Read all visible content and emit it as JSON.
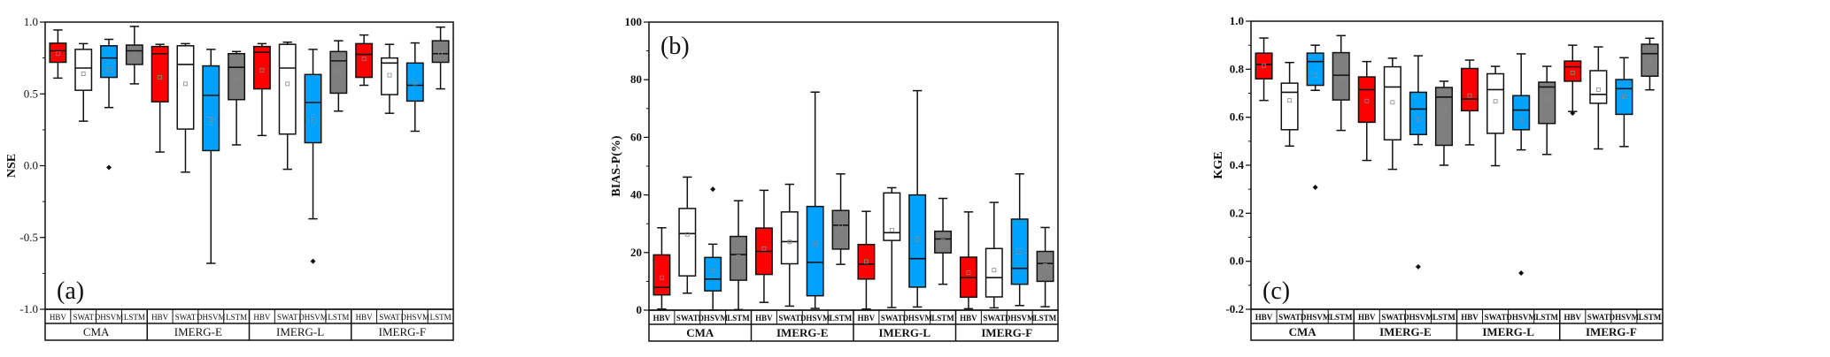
{
  "chart_data": [
    {
      "type": "box",
      "panel_label": "(a)",
      "ylabel": "NSE",
      "ylim": [
        -1.0,
        1.0
      ],
      "yticks": [
        -1.0,
        -0.5,
        0.0,
        0.5,
        1.0
      ],
      "ytick_labels": [
        "-1.0",
        "-0.5",
        "0.0",
        "0.5",
        "1.0"
      ],
      "minor_step": 0.25,
      "groups": [
        "CMA",
        "IMERG-E",
        "IMERG-L",
        "IMERG-F"
      ],
      "models": [
        "HBV",
        "SWAT",
        "DHSVM",
        "LSTM"
      ],
      "stat_order": [
        "whisker_low",
        "q1",
        "median",
        "q3",
        "whisker_high",
        "mean",
        "outliers"
      ],
      "boxes": {
        "CMA": {
          "HBV": [
            0.61,
            0.72,
            0.8,
            0.853,
            0.945,
            0.78,
            []
          ],
          "SWAT": [
            0.31,
            0.525,
            0.68,
            0.81,
            0.85,
            0.64,
            []
          ],
          "DHSVM": [
            0.405,
            0.615,
            0.75,
            0.835,
            0.88,
            0.67,
            [
              -0.012
            ]
          ],
          "LSTM": [
            0.57,
            0.705,
            0.8,
            0.84,
            0.97,
            0.78,
            []
          ]
        },
        "IMERG-E": {
          "HBV": [
            0.095,
            0.445,
            0.78,
            0.83,
            0.845,
            0.615,
            []
          ],
          "SWAT": [
            -0.045,
            0.255,
            0.705,
            0.835,
            0.85,
            0.57,
            []
          ],
          "DHSVM": [
            -0.68,
            0.105,
            0.49,
            0.695,
            0.81,
            0.32,
            []
          ],
          "LSTM": [
            0.145,
            0.46,
            0.685,
            0.78,
            0.795,
            0.6,
            []
          ]
        },
        "IMERG-L": {
          "HBV": [
            0.21,
            0.535,
            0.79,
            0.83,
            0.85,
            0.665,
            []
          ],
          "SWAT": [
            -0.025,
            0.22,
            0.68,
            0.845,
            0.86,
            0.57,
            []
          ],
          "DHSVM": [
            -0.37,
            0.16,
            0.44,
            0.635,
            0.81,
            0.315,
            [
              -0.665
            ]
          ],
          "LSTM": [
            0.38,
            0.505,
            0.73,
            0.795,
            0.87,
            0.66,
            []
          ]
        },
        "IMERG-F": {
          "HBV": [
            0.56,
            0.615,
            0.775,
            0.85,
            0.91,
            0.745,
            []
          ],
          "SWAT": [
            0.365,
            0.495,
            0.715,
            0.75,
            0.845,
            0.63,
            []
          ],
          "DHSVM": [
            0.24,
            0.45,
            0.56,
            0.715,
            0.855,
            0.575,
            []
          ],
          "LSTM": [
            0.535,
            0.72,
            0.78,
            0.87,
            0.965,
            0.78,
            []
          ]
        }
      }
    },
    {
      "type": "box",
      "panel_label": "(b)",
      "ylabel": "BIAS-P(%)",
      "ylim": [
        0,
        100
      ],
      "yticks": [
        0,
        20,
        40,
        60,
        80,
        100
      ],
      "ytick_labels": [
        "0",
        "20",
        "40",
        "60",
        "80",
        "100"
      ],
      "minor_step": 10,
      "groups": [
        "CMA",
        "IMERG-E",
        "IMERG-L",
        "IMERG-F"
      ],
      "models": [
        "HBV",
        "SWAT",
        "DHSVM",
        "LSTM"
      ],
      "stat_order": [
        "whisker_low",
        "q1",
        "median",
        "q3",
        "whisker_high",
        "mean",
        "outliers"
      ],
      "boxes": {
        "CMA": {
          "HBV": [
            0.4,
            5.3,
            7.9,
            19.2,
            28.6,
            11.3,
            []
          ],
          "SWAT": [
            5.9,
            11.9,
            26.6,
            35.3,
            46.2,
            26.3,
            []
          ],
          "DHSVM": [
            0.0,
            6.7,
            10.8,
            18.3,
            22.9,
            13.8,
            [
              42.0
            ]
          ],
          "LSTM": [
            0.2,
            10.4,
            19.3,
            25.6,
            38.0,
            18.6,
            []
          ]
        },
        "IMERG-E": {
          "HBV": [
            2.7,
            12.4,
            20.4,
            28.5,
            41.6,
            21.4,
            []
          ],
          "SWAT": [
            1.4,
            16.1,
            23.8,
            34.1,
            43.7,
            23.7,
            []
          ],
          "DHSVM": [
            0.6,
            5.0,
            16.6,
            36.0,
            75.7,
            23.0,
            []
          ],
          "LSTM": [
            15.9,
            21.2,
            29.5,
            34.6,
            47.3,
            29.3,
            []
          ]
        },
        "IMERG-L": {
          "HBV": [
            0.4,
            10.8,
            16.0,
            22.8,
            34.3,
            16.9,
            []
          ],
          "SWAT": [
            0.9,
            24.2,
            26.9,
            40.7,
            42.5,
            27.8,
            []
          ],
          "DHSVM": [
            1.1,
            8.0,
            17.9,
            40.0,
            76.2,
            24.7,
            []
          ],
          "LSTM": [
            9.0,
            19.9,
            24.7,
            27.4,
            38.8,
            24.0,
            []
          ]
        },
        "IMERG-F": {
          "HBV": [
            0.5,
            4.5,
            11.3,
            18.4,
            34.1,
            13.0,
            []
          ],
          "SWAT": [
            0.8,
            4.6,
            11.3,
            21.4,
            37.4,
            13.9,
            []
          ],
          "DHSVM": [
            1.6,
            9.0,
            14.5,
            31.6,
            47.3,
            20.4,
            []
          ],
          "LSTM": [
            1.2,
            10.0,
            16.2,
            20.4,
            28.7,
            15.5,
            []
          ]
        }
      }
    },
    {
      "type": "box",
      "panel_label": "(c)",
      "ylabel": "KGE",
      "ylim": [
        -0.2,
        1.0
      ],
      "yticks": [
        -0.2,
        0.0,
        0.2,
        0.4,
        0.6,
        0.8,
        1.0
      ],
      "ytick_labels": [
        "-0.2",
        "0.0",
        "0.2",
        "0.4",
        "0.6",
        "0.8",
        "1.0"
      ],
      "minor_step": 0.1,
      "groups": [
        "CMA",
        "IMERG-E",
        "IMERG-L",
        "IMERG-F"
      ],
      "models": [
        "HBV",
        "SWAT",
        "DHSVM",
        "LSTM"
      ],
      "stat_order": [
        "whisker_low",
        "q1",
        "median",
        "q3",
        "whisker_high",
        "mean",
        "outliers"
      ],
      "boxes": {
        "CMA": {
          "HBV": [
            0.67,
            0.76,
            0.82,
            0.867,
            0.93,
            0.815,
            []
          ],
          "SWAT": [
            0.48,
            0.548,
            0.704,
            0.742,
            0.828,
            0.67,
            []
          ],
          "DHSVM": [
            0.712,
            0.733,
            0.832,
            0.867,
            0.9,
            0.774,
            [
              0.308
            ]
          ],
          "LSTM": [
            0.545,
            0.672,
            0.775,
            0.869,
            0.94,
            0.76,
            []
          ]
        },
        "IMERG-E": {
          "HBV": [
            0.42,
            0.579,
            0.715,
            0.768,
            0.832,
            0.668,
            []
          ],
          "SWAT": [
            0.383,
            0.506,
            0.726,
            0.81,
            0.846,
            0.662,
            []
          ],
          "DHSVM": [
            0.486,
            0.528,
            0.634,
            0.704,
            0.856,
            0.592,
            [
              -0.023
            ]
          ],
          "LSTM": [
            0.4,
            0.483,
            0.684,
            0.724,
            0.75,
            0.62,
            []
          ]
        },
        "IMERG-L": {
          "HBV": [
            0.485,
            0.627,
            0.676,
            0.803,
            0.838,
            0.69,
            []
          ],
          "SWAT": [
            0.398,
            0.533,
            0.715,
            0.781,
            0.812,
            0.666,
            []
          ],
          "DHSVM": [
            0.464,
            0.548,
            0.63,
            0.69,
            0.864,
            0.587,
            [
              -0.049
            ]
          ],
          "LSTM": [
            0.445,
            0.574,
            0.726,
            0.746,
            0.812,
            0.674,
            []
          ]
        },
        "IMERG-F": {
          "HBV": [
            0.624,
            0.75,
            0.81,
            0.834,
            0.9,
            0.785,
            [
              0.617
            ]
          ],
          "SWAT": [
            0.468,
            0.658,
            0.695,
            0.794,
            0.893,
            0.715,
            []
          ],
          "DHSVM": [
            0.478,
            0.612,
            0.719,
            0.757,
            0.848,
            0.686,
            []
          ],
          "LSTM": [
            0.714,
            0.771,
            0.865,
            0.904,
            0.929,
            0.834,
            []
          ]
        }
      }
    }
  ],
  "colors": {
    "HBV": "#ff0000",
    "SWAT": "#ffffff",
    "DHSVM": "#00a2ff",
    "LSTM": "#7f7f7f",
    "line": "#111111"
  }
}
